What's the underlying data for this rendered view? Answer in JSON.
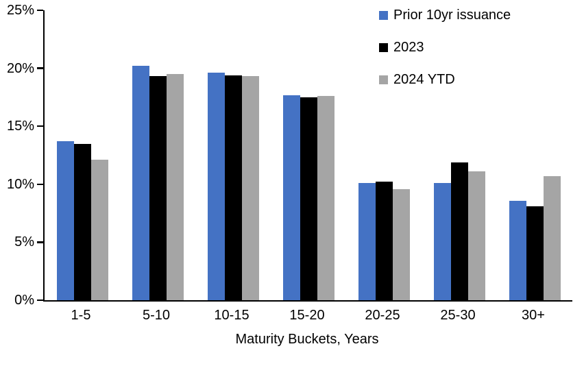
{
  "chart_data": {
    "type": "bar",
    "title": "",
    "xlabel": "Maturity Buckets, Years",
    "ylabel": "",
    "categories": [
      "1-5",
      "5-10",
      "10-15",
      "15-20",
      "20-25",
      "25-30",
      "30+"
    ],
    "series": [
      {
        "name": "Prior 10yr issuance",
        "color": "#4472C4",
        "values": [
          13.7,
          20.2,
          19.6,
          17.7,
          10.1,
          10.1,
          8.6
        ]
      },
      {
        "name": "2023",
        "color": "#000000",
        "values": [
          13.5,
          19.3,
          19.4,
          17.5,
          10.2,
          11.9,
          8.1
        ]
      },
      {
        "name": "2024 YTD",
        "color": "#A5A5A5",
        "values": [
          12.1,
          19.5,
          19.3,
          17.6,
          9.6,
          11.1,
          10.7
        ]
      }
    ],
    "ylim": [
      0,
      25
    ],
    "ytick_step": 5,
    "ytick_labels": [
      "0%",
      "5%",
      "10%",
      "15%",
      "20%",
      "25%"
    ],
    "legend_position": "top-right",
    "grid": false,
    "axis_color": "#000000",
    "background_color": "#FFFFFF"
  }
}
